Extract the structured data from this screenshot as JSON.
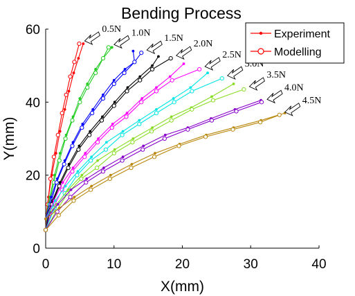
{
  "chart_data": {
    "type": "line",
    "title": "Bending Process",
    "xlabel": "X(mm)",
    "ylabel": "Y(mm)",
    "xlim": [
      0,
      40
    ],
    "ylim": [
      0,
      60
    ],
    "xticks": [
      "0",
      "10",
      "20",
      "30",
      "40"
    ],
    "yticks": [
      "0",
      "20",
      "40",
      "60"
    ],
    "grid": false,
    "legend": {
      "placement": "top-right",
      "entries": [
        {
          "label": "Experiment",
          "marker": "dot"
        },
        {
          "label": "Modelling",
          "marker": "circle"
        }
      ]
    },
    "series": [
      {
        "label": "0.5N",
        "color": "#ff0000",
        "experiment": [
          [
            0,
            8
          ],
          [
            0.4,
            14
          ],
          [
            0.9,
            20
          ],
          [
            1.5,
            26
          ],
          [
            2.1,
            32
          ],
          [
            2.8,
            38
          ],
          [
            3.4,
            43
          ],
          [
            4.1,
            48
          ],
          [
            4.8,
            52
          ],
          [
            5.5,
            56
          ]
        ],
        "model": [
          [
            0,
            5
          ],
          [
            0.3,
            12
          ],
          [
            0.7,
            19
          ],
          [
            1.2,
            25
          ],
          [
            1.8,
            31
          ],
          [
            2.4,
            37
          ],
          [
            3.0,
            42
          ],
          [
            3.6,
            47
          ],
          [
            4.2,
            51
          ],
          [
            4.9,
            56
          ]
        ]
      },
      {
        "label": "1.0N",
        "color": "#22cc22",
        "experiment": [
          [
            0,
            8
          ],
          [
            0.6,
            14
          ],
          [
            1.3,
            20
          ],
          [
            2.1,
            26
          ],
          [
            3.0,
            31
          ],
          [
            4.0,
            36
          ],
          [
            5.0,
            41
          ],
          [
            6.1,
            45
          ],
          [
            7.3,
            49
          ],
          [
            8.4,
            52
          ],
          [
            9.7,
            55
          ]
        ],
        "model": [
          [
            0,
            5
          ],
          [
            0.5,
            12
          ],
          [
            1.2,
            18
          ],
          [
            2.0,
            24
          ],
          [
            2.9,
            30
          ],
          [
            3.9,
            35
          ],
          [
            5.0,
            40
          ],
          [
            6.1,
            44
          ],
          [
            7.3,
            48
          ],
          [
            8.4,
            52
          ],
          [
            9.2,
            55
          ]
        ]
      },
      {
        "label": "1.5N",
        "color": "#0000ff",
        "experiment": [
          [
            0,
            8
          ],
          [
            0.8,
            14
          ],
          [
            1.7,
            19
          ],
          [
            2.8,
            24
          ],
          [
            4.0,
            29
          ],
          [
            5.4,
            34
          ],
          [
            6.9,
            38
          ],
          [
            8.4,
            42
          ],
          [
            10.0,
            46
          ],
          [
            11.6,
            49
          ],
          [
            13.0,
            51
          ],
          [
            12.8,
            54
          ]
        ],
        "model": [
          [
            0,
            5
          ],
          [
            0.7,
            12
          ],
          [
            1.6,
            18
          ],
          [
            2.7,
            23
          ],
          [
            3.9,
            28
          ],
          [
            5.3,
            33
          ],
          [
            6.8,
            37
          ],
          [
            8.4,
            41
          ],
          [
            10.0,
            45
          ],
          [
            11.5,
            48
          ],
          [
            13.0,
            51
          ],
          [
            14.0,
            53.5
          ]
        ]
      },
      {
        "label": "2.0N",
        "color": "#000000",
        "experiment": [
          [
            0,
            8
          ],
          [
            1.0,
            13
          ],
          [
            2.1,
            18
          ],
          [
            3.4,
            23
          ],
          [
            4.9,
            28
          ],
          [
            6.5,
            32
          ],
          [
            8.3,
            36
          ],
          [
            10.1,
            40
          ],
          [
            12.0,
            44
          ],
          [
            13.8,
            47
          ],
          [
            15.6,
            50
          ],
          [
            16.5,
            52.5
          ]
        ],
        "model": [
          [
            0,
            5
          ],
          [
            0.9,
            12
          ],
          [
            2.0,
            17
          ],
          [
            3.3,
            22
          ],
          [
            4.8,
            27
          ],
          [
            6.4,
            31
          ],
          [
            8.2,
            35
          ],
          [
            10.0,
            39
          ],
          [
            11.9,
            43
          ],
          [
            13.8,
            46
          ],
          [
            15.6,
            49
          ],
          [
            18.3,
            52
          ]
        ]
      },
      {
        "label": "2.5N",
        "color": "#ff00ff",
        "experiment": [
          [
            0,
            8
          ],
          [
            1.2,
            13
          ],
          [
            2.5,
            18
          ],
          [
            4.0,
            22
          ],
          [
            5.8,
            26
          ],
          [
            7.7,
            30
          ],
          [
            9.8,
            34
          ],
          [
            11.9,
            37
          ],
          [
            14.1,
            41
          ],
          [
            16.2,
            44
          ],
          [
            18.2,
            47
          ],
          [
            20.2,
            50.5
          ]
        ],
        "model": [
          [
            0,
            5
          ],
          [
            1.1,
            11
          ],
          [
            2.4,
            16
          ],
          [
            3.9,
            21
          ],
          [
            5.7,
            25
          ],
          [
            7.6,
            29
          ],
          [
            9.7,
            33
          ],
          [
            11.8,
            36
          ],
          [
            14.0,
            40
          ],
          [
            16.2,
            43
          ],
          [
            18.5,
            46
          ],
          [
            22.5,
            49
          ]
        ]
      },
      {
        "label": "3.0N",
        "color": "#00e5e5",
        "experiment": [
          [
            0,
            8
          ],
          [
            1.4,
            13
          ],
          [
            2.9,
            17
          ],
          [
            4.7,
            21
          ],
          [
            6.7,
            25
          ],
          [
            8.9,
            29
          ],
          [
            11.3,
            32
          ],
          [
            13.7,
            35
          ],
          [
            16.2,
            38
          ],
          [
            18.7,
            41
          ],
          [
            21.2,
            44
          ],
          [
            23.7,
            48
          ]
        ],
        "model": [
          [
            0,
            5
          ],
          [
            1.3,
            11
          ],
          [
            2.8,
            15
          ],
          [
            4.6,
            20
          ],
          [
            6.6,
            24
          ],
          [
            8.8,
            27
          ],
          [
            11.2,
            31
          ],
          [
            13.7,
            34
          ],
          [
            16.2,
            37
          ],
          [
            18.8,
            40
          ],
          [
            21.4,
            43
          ],
          [
            25.8,
            46.5
          ]
        ]
      },
      {
        "label": "3.5N",
        "color": "#88dd22",
        "experiment": [
          [
            0,
            8
          ],
          [
            1.6,
            12
          ],
          [
            3.3,
            16
          ],
          [
            5.3,
            20
          ],
          [
            7.6,
            24
          ],
          [
            10.1,
            27
          ],
          [
            12.8,
            30
          ],
          [
            15.6,
            33
          ],
          [
            18.4,
            36
          ],
          [
            21.3,
            38.5
          ],
          [
            24.3,
            41.5
          ],
          [
            27.5,
            45
          ]
        ],
        "model": [
          [
            0,
            5
          ],
          [
            1.5,
            10
          ],
          [
            3.2,
            15
          ],
          [
            5.2,
            19
          ],
          [
            7.5,
            22
          ],
          [
            10.0,
            26
          ],
          [
            12.7,
            29
          ],
          [
            15.5,
            32
          ],
          [
            18.4,
            35
          ],
          [
            21.4,
            38
          ],
          [
            24.5,
            40.5
          ],
          [
            29.0,
            43.5
          ]
        ]
      },
      {
        "label": "4.0N",
        "color": "#8800cc",
        "experiment": [
          [
            0,
            8
          ],
          [
            1.8,
            12
          ],
          [
            3.7,
            16
          ],
          [
            6.0,
            19
          ],
          [
            8.5,
            22
          ],
          [
            11.3,
            25
          ],
          [
            14.3,
            28
          ],
          [
            17.5,
            31
          ],
          [
            20.8,
            33
          ],
          [
            24.2,
            35.5
          ],
          [
            27.7,
            38
          ],
          [
            31.5,
            40.5
          ]
        ],
        "model": [
          [
            0,
            5
          ],
          [
            1.7,
            10
          ],
          [
            3.6,
            14
          ],
          [
            5.9,
            18
          ],
          [
            8.4,
            21
          ],
          [
            11.2,
            24
          ],
          [
            14.2,
            27
          ],
          [
            17.4,
            30
          ],
          [
            20.8,
            32.5
          ],
          [
            24.3,
            35
          ],
          [
            27.9,
            37.5
          ],
          [
            31.6,
            40
          ]
        ]
      },
      {
        "label": "4.5N",
        "color": "#b8860b",
        "experiment": [
          [
            0,
            8
          ],
          [
            2.0,
            11
          ],
          [
            4.2,
            14
          ],
          [
            6.7,
            17
          ],
          [
            9.5,
            20
          ],
          [
            12.6,
            23
          ],
          [
            16.0,
            26
          ],
          [
            19.6,
            28.5
          ],
          [
            23.5,
            31
          ],
          [
            27.5,
            33
          ],
          [
            31.5,
            35
          ],
          [
            35.0,
            37
          ]
        ],
        "model": [
          [
            0,
            5
          ],
          [
            1.9,
            9
          ],
          [
            4.1,
            13
          ],
          [
            6.6,
            16
          ],
          [
            9.4,
            19
          ],
          [
            12.5,
            22
          ],
          [
            15.9,
            25
          ],
          [
            19.5,
            28
          ],
          [
            23.4,
            30.5
          ],
          [
            27.4,
            32.5
          ],
          [
            31.4,
            34.5
          ],
          [
            34.2,
            36.5
          ]
        ]
      }
    ]
  }
}
